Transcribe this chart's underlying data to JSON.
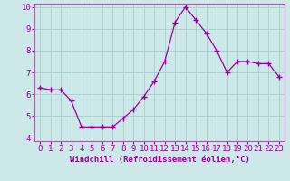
{
  "x": [
    0,
    1,
    2,
    3,
    4,
    5,
    6,
    7,
    8,
    9,
    10,
    11,
    12,
    13,
    14,
    15,
    16,
    17,
    18,
    19,
    20,
    21,
    22,
    23
  ],
  "y": [
    6.3,
    6.2,
    6.2,
    5.7,
    4.5,
    4.5,
    4.5,
    4.5,
    4.9,
    5.3,
    5.9,
    6.6,
    7.5,
    9.3,
    10.0,
    9.4,
    8.8,
    8.0,
    7.0,
    7.5,
    7.5,
    7.4,
    7.4,
    6.8
  ],
  "line_color": "#990099",
  "marker": "+",
  "marker_size": 4,
  "bg_color": "#cce8e8",
  "grid_color": "#aacccc",
  "xlabel": "Windchill (Refroidissement éolien,°C)",
  "ylim": [
    4,
    10
  ],
  "xlim": [
    -0.5,
    23.5
  ],
  "yticks": [
    4,
    5,
    6,
    7,
    8,
    9,
    10
  ],
  "xticks": [
    0,
    1,
    2,
    3,
    4,
    5,
    6,
    7,
    8,
    9,
    10,
    11,
    12,
    13,
    14,
    15,
    16,
    17,
    18,
    19,
    20,
    21,
    22,
    23
  ],
  "tick_color": "#990099",
  "label_color": "#990099",
  "xlabel_fontsize": 6.5,
  "tick_fontsize": 6.5,
  "spine_color": "#996699"
}
